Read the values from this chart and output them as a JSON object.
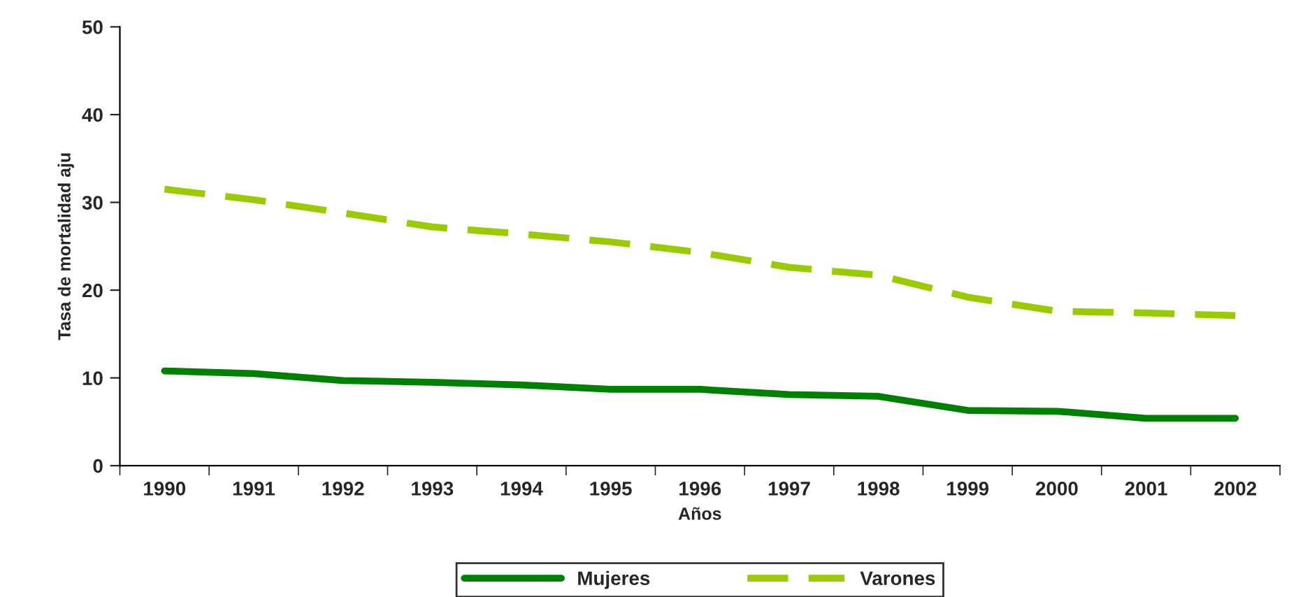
{
  "chart_data": {
    "type": "line",
    "xlabel": "Años",
    "ylabel": "Tasa de mortalidad aju",
    "categories": [
      "1990",
      "1991",
      "1992",
      "1993",
      "1994",
      "1995",
      "1996",
      "1997",
      "1998",
      "1999",
      "2000",
      "2001",
      "2002"
    ],
    "series": [
      {
        "name": "Mujeres",
        "color": "#008000",
        "line_style": "solid",
        "values": [
          10.8,
          10.5,
          9.7,
          9.5,
          9.2,
          8.7,
          8.7,
          8.1,
          7.9,
          6.3,
          6.2,
          5.4,
          5.4
        ]
      },
      {
        "name": "Varones",
        "color": "#99cc00",
        "line_style": "dashed",
        "values": [
          31.5,
          30.3,
          28.8,
          27.2,
          26.4,
          25.5,
          24.3,
          22.6,
          21.7,
          19.2,
          17.6,
          17.4,
          17.1
        ]
      }
    ],
    "ylim": [
      0,
      50
    ],
    "yticks": [
      0,
      10,
      20,
      30,
      40,
      50
    ],
    "grid": false,
    "legend": "bottom",
    "marker": "none"
  }
}
